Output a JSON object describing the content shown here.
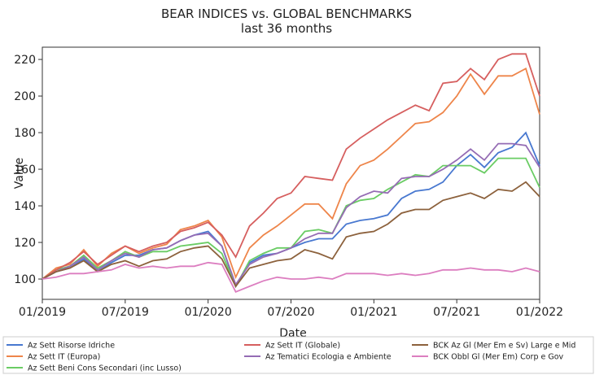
{
  "chart_data": {
    "type": "line",
    "title": "BEAR INDICES vs. GLOBAL BENCHMARKS",
    "subtitle": "last 36 months",
    "x_label": "Date",
    "y_label": "Value",
    "x": [
      "2019-01",
      "2019-02",
      "2019-03",
      "2019-04",
      "2019-05",
      "2019-06",
      "2019-07",
      "2019-08",
      "2019-09",
      "2019-10",
      "2019-11",
      "2019-12",
      "2020-01",
      "2020-02",
      "2020-03",
      "2020-04",
      "2020-05",
      "2020-06",
      "2020-07",
      "2020-08",
      "2020-09",
      "2020-10",
      "2020-11",
      "2020-12",
      "2021-01",
      "2021-02",
      "2021-03",
      "2021-04",
      "2021-05",
      "2021-06",
      "2021-07",
      "2021-08",
      "2021-09",
      "2021-10",
      "2021-11",
      "2021-12",
      "2022-01"
    ],
    "xlim": [
      "2019-01",
      "2022-01"
    ],
    "xticks": [
      {
        "value": "2019-01",
        "label": "01/2019"
      },
      {
        "value": "2019-07",
        "label": "07/2019"
      },
      {
        "value": "2020-01",
        "label": "01/2020"
      },
      {
        "value": "2020-07",
        "label": "07/2020"
      },
      {
        "value": "2021-01",
        "label": "01/2021"
      },
      {
        "value": "2021-07",
        "label": "07/2021"
      },
      {
        "value": "2022-01",
        "label": "01/2022"
      }
    ],
    "ylim": [
      88.9,
      226.7
    ],
    "yticks": [
      100,
      120,
      140,
      160,
      180,
      200,
      220
    ],
    "grid": false,
    "legend": "bottom",
    "series": [
      {
        "name": "Az Sett Risorse Idriche",
        "color": "#4878d0",
        "values": [
          100,
          104,
          106,
          111,
          104,
          109,
          113,
          113,
          116,
          117,
          121,
          124,
          126,
          118,
          96,
          109,
          113,
          114,
          117,
          120,
          122,
          122,
          130,
          132,
          133,
          135,
          144,
          148,
          149,
          153,
          162,
          168,
          161,
          169,
          172,
          180,
          162
        ]
      },
      {
        "name": "Az Sett IT (Europa)",
        "color": "#ee854a",
        "values": [
          100,
          106,
          108,
          116,
          107,
          114,
          118,
          114,
          117,
          119,
          127,
          129,
          132,
          123,
          101,
          117,
          124,
          129,
          135,
          141,
          141,
          133,
          152,
          162,
          165,
          171,
          178,
          185,
          186,
          191,
          200,
          212,
          201,
          211,
          211,
          215,
          190
        ]
      },
      {
        "name": "Az Sett Beni Cons Secondari (inc Lusso)",
        "color": "#6acc64",
        "values": [
          100,
          105,
          107,
          113,
          106,
          110,
          115,
          112,
          115,
          115,
          118,
          119,
          120,
          114,
          96,
          110,
          114,
          117,
          117,
          126,
          127,
          125,
          140,
          143,
          144,
          149,
          153,
          157,
          156,
          162,
          162,
          162,
          158,
          166,
          166,
          166,
          150
        ]
      },
      {
        "name": "Az Sett IT (Globale)",
        "color": "#d65f5f",
        "values": [
          100,
          105,
          109,
          115,
          108,
          113,
          118,
          115,
          118,
          120,
          126,
          128,
          131,
          124,
          112,
          129,
          136,
          144,
          147,
          156,
          155,
          154,
          171,
          177,
          182,
          187,
          191,
          195,
          192,
          207,
          208,
          215,
          209,
          220,
          223,
          223,
          200
        ]
      },
      {
        "name": "Az Tematici Ecologia e Ambiente",
        "color": "#956cb4",
        "values": [
          100,
          104,
          107,
          112,
          105,
          110,
          114,
          112,
          116,
          117,
          121,
          124,
          125,
          118,
          97,
          108,
          112,
          114,
          117,
          122,
          125,
          125,
          139,
          145,
          148,
          147,
          155,
          156,
          156,
          160,
          165,
          171,
          165,
          174,
          174,
          173,
          161
        ]
      },
      {
        "name": "BCK Az Gl (Mer Em e Sv) Large e Mid",
        "color": "#8c613c",
        "values": [
          100,
          104,
          106,
          110,
          104,
          108,
          110,
          107,
          110,
          111,
          115,
          117,
          118,
          111,
          96,
          106,
          108,
          110,
          111,
          116,
          114,
          111,
          123,
          125,
          126,
          130,
          136,
          138,
          138,
          143,
          145,
          147,
          144,
          149,
          148,
          153,
          145
        ]
      },
      {
        "name": "BCK Obbl Gl (Mer Em) Corp e Gov",
        "color": "#dc7ec0",
        "values": [
          100,
          101,
          103,
          103,
          104,
          105,
          108,
          106,
          107,
          106,
          107,
          107,
          109,
          108,
          93,
          96,
          99,
          101,
          100,
          100,
          101,
          100,
          103,
          103,
          103,
          102,
          103,
          102,
          103,
          105,
          105,
          106,
          105,
          105,
          104,
          106,
          104
        ]
      }
    ]
  }
}
